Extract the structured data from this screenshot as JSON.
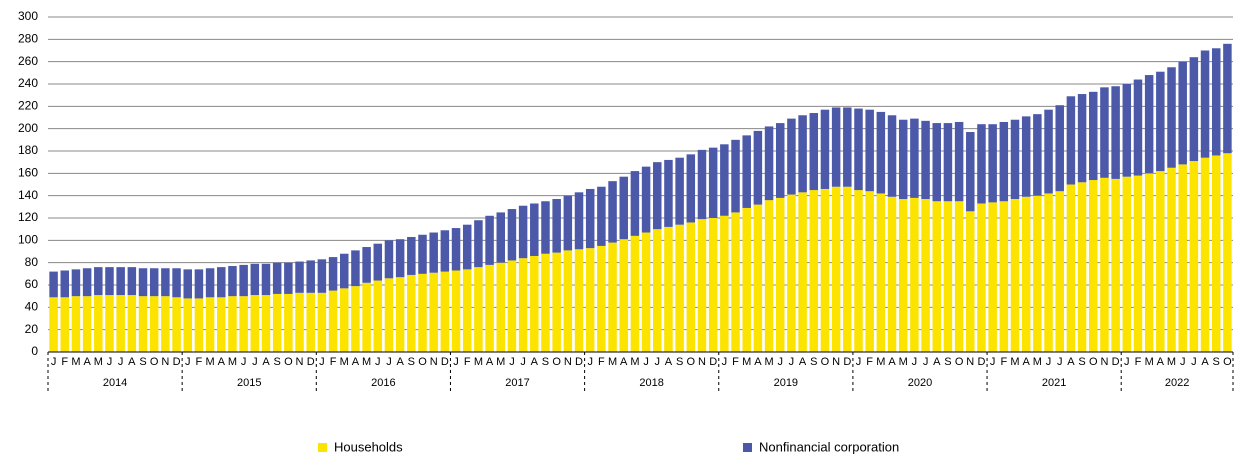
{
  "chart_data": {
    "type": "stacked-bar",
    "categories": [
      "J",
      "F",
      "M",
      "A",
      "M",
      "J",
      "J",
      "A",
      "S",
      "O",
      "N",
      "D",
      "J",
      "F",
      "M",
      "A",
      "M",
      "J",
      "J",
      "A",
      "S",
      "O",
      "N",
      "D",
      "J",
      "F",
      "M",
      "A",
      "M",
      "J",
      "J",
      "A",
      "S",
      "O",
      "N",
      "D",
      "J",
      "F",
      "M",
      "A",
      "M",
      "J",
      "J",
      "A",
      "S",
      "O",
      "N",
      "D",
      "J",
      "F",
      "M",
      "A",
      "M",
      "J",
      "J",
      "A",
      "S",
      "O",
      "N",
      "D",
      "J",
      "F",
      "M",
      "A",
      "M",
      "J",
      "J",
      "A",
      "S",
      "O",
      "N",
      "D",
      "J",
      "F",
      "M",
      "A",
      "M",
      "J",
      "J",
      "A",
      "S",
      "O",
      "N",
      "D",
      "J",
      "F",
      "M",
      "A",
      "M",
      "J",
      "J",
      "A",
      "S",
      "O",
      "N",
      "D",
      "J",
      "F",
      "M",
      "A",
      "M",
      "J",
      "J",
      "A",
      "S",
      "O"
    ],
    "years": [
      "2014",
      "2015",
      "2016",
      "2017",
      "2018",
      "2019",
      "2020",
      "2021",
      "2022"
    ],
    "series": [
      {
        "name": "Households",
        "color": "#fce300",
        "values": [
          49,
          49,
          50,
          50,
          51,
          51,
          51,
          51,
          50,
          50,
          50,
          49,
          48,
          48,
          49,
          49,
          50,
          50,
          51,
          51,
          52,
          52,
          53,
          53,
          53,
          55,
          57,
          59,
          62,
          64,
          66,
          67,
          69,
          70,
          71,
          72,
          73,
          74,
          76,
          78,
          80,
          82,
          84,
          86,
          88,
          89,
          91,
          92,
          93,
          95,
          98,
          101,
          104,
          107,
          110,
          112,
          114,
          116,
          119,
          120,
          122,
          125,
          129,
          132,
          136,
          138,
          141,
          143,
          145,
          146,
          148,
          148,
          145,
          144,
          142,
          139,
          137,
          138,
          137,
          135,
          135,
          135,
          126,
          133,
          134,
          135,
          137,
          139,
          140,
          142,
          144,
          150,
          152,
          154,
          156,
          155,
          157,
          158,
          160,
          162,
          165,
          168,
          171,
          174,
          176,
          178
        ]
      },
      {
        "name": "Nonfinancial corporation",
        "color": "#4b59a8",
        "values": [
          23,
          24,
          24,
          25,
          25,
          25,
          25,
          25,
          25,
          25,
          25,
          26,
          26,
          26,
          26,
          27,
          27,
          28,
          28,
          28,
          28,
          28,
          28,
          29,
          30,
          30,
          31,
          32,
          32,
          33,
          34,
          34,
          34,
          35,
          36,
          37,
          38,
          40,
          42,
          44,
          45,
          46,
          47,
          47,
          47,
          48,
          49,
          51,
          53,
          53,
          55,
          56,
          58,
          59,
          60,
          60,
          60,
          61,
          62,
          63,
          64,
          65,
          65,
          66,
          66,
          67,
          68,
          69,
          69,
          71,
          71,
          71,
          73,
          73,
          73,
          73,
          71,
          71,
          70,
          70,
          70,
          71,
          71,
          71,
          70,
          71,
          71,
          72,
          73,
          75,
          77,
          79,
          79,
          79,
          81,
          83,
          83,
          86,
          88,
          89,
          90,
          92,
          93,
          96,
          96,
          98
        ]
      }
    ],
    "ylim": [
      0,
      300
    ],
    "yticks": [
      0,
      20,
      40,
      60,
      80,
      100,
      120,
      140,
      160,
      180,
      200,
      220,
      240,
      260,
      280,
      300
    ],
    "grid": true,
    "legend": "bottom"
  }
}
